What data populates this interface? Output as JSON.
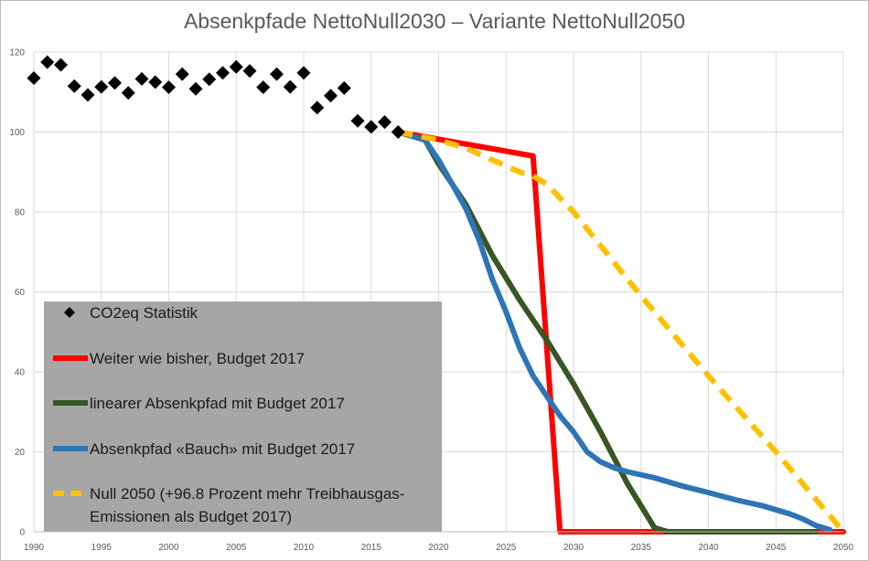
{
  "chart_data": {
    "type": "line",
    "title": "Absenkpfade NettoNull2030 – Variante NettoNull2050",
    "xlabel": "",
    "ylabel": "",
    "xlim": [
      1990,
      2050
    ],
    "ylim": [
      0,
      120
    ],
    "x_ticks": [
      1990,
      1995,
      2000,
      2005,
      2010,
      2015,
      2020,
      2025,
      2030,
      2035,
      2040,
      2045,
      2050
    ],
    "y_ticks": [
      0,
      20,
      40,
      60,
      80,
      100,
      120
    ],
    "grid": true,
    "legend_position": "bottom-left",
    "series": [
      {
        "name": "CO2eq Statistik",
        "style": "markers",
        "marker": "diamond",
        "color": "#000000",
        "x": [
          1990,
          1991,
          1992,
          1993,
          1994,
          1995,
          1996,
          1997,
          1998,
          1999,
          2000,
          2001,
          2002,
          2003,
          2004,
          2005,
          2006,
          2007,
          2008,
          2009,
          2010,
          2011,
          2012,
          2013,
          2014,
          2015,
          2016,
          2017
        ],
        "y": [
          113.5,
          117.5,
          116.8,
          111.5,
          109.3,
          111.3,
          112.3,
          109.8,
          113.3,
          112.5,
          111.2,
          114.5,
          110.8,
          113.2,
          114.8,
          116.3,
          115.3,
          111.2,
          114.5,
          111.3,
          114.8,
          106.1,
          109.1,
          111,
          102.8,
          101.3,
          102.5,
          100
        ]
      },
      {
        "name": "Weiter wie bisher, Budget 2017",
        "style": "solid",
        "color": "#ff0000",
        "x": [
          2017,
          2027,
          2029,
          2050
        ],
        "y": [
          100,
          94,
          0,
          0
        ]
      },
      {
        "name": "linearer Absenkpfad mit Budget 2017",
        "style": "solid",
        "color": "#375623",
        "x": [
          2017,
          2019,
          2020,
          2022,
          2024,
          2026,
          2028,
          2030,
          2032,
          2034,
          2036,
          2037,
          2048
        ],
        "y": [
          100,
          98,
          92,
          82,
          69,
          58,
          48,
          37,
          25,
          12,
          1,
          0,
          0
        ]
      },
      {
        "name": "Absenkpfad «Bauch» mit Budget 2017",
        "style": "solid",
        "color": "#2e75b6",
        "x": [
          2017,
          2019,
          2020,
          2021,
          2022,
          2023,
          2024,
          2025,
          2026,
          2027,
          2028,
          2029,
          2030,
          2031,
          2032,
          2033,
          2034,
          2036,
          2038,
          2040,
          2042,
          2044,
          2046,
          2047,
          2048,
          2049
        ],
        "y": [
          100,
          98,
          93,
          87,
          81,
          73,
          63,
          55,
          46,
          39,
          34,
          29,
          25,
          20,
          17.5,
          16,
          15,
          13.5,
          11.5,
          9.8,
          8,
          6.5,
          4.5,
          3.2,
          1.5,
          0.5
        ]
      },
      {
        "name": "Null 2050 (+96.8 Prozent mehr Treibhausgas-Emissionen als Budget 2017)",
        "name_lines": [
          "Null 2050 (+96.8 Prozent mehr Treibhausgas-",
          "Emissionen als Budget 2017)"
        ],
        "style": "dashed",
        "color": "#ffc000",
        "x": [
          2017,
          2020,
          2022,
          2024,
          2026,
          2027,
          2028,
          2030,
          2035,
          2040,
          2045,
          2050
        ],
        "y": [
          100,
          98,
          96,
          93,
          90,
          89,
          87,
          80,
          59,
          39,
          20,
          0
        ]
      }
    ]
  }
}
